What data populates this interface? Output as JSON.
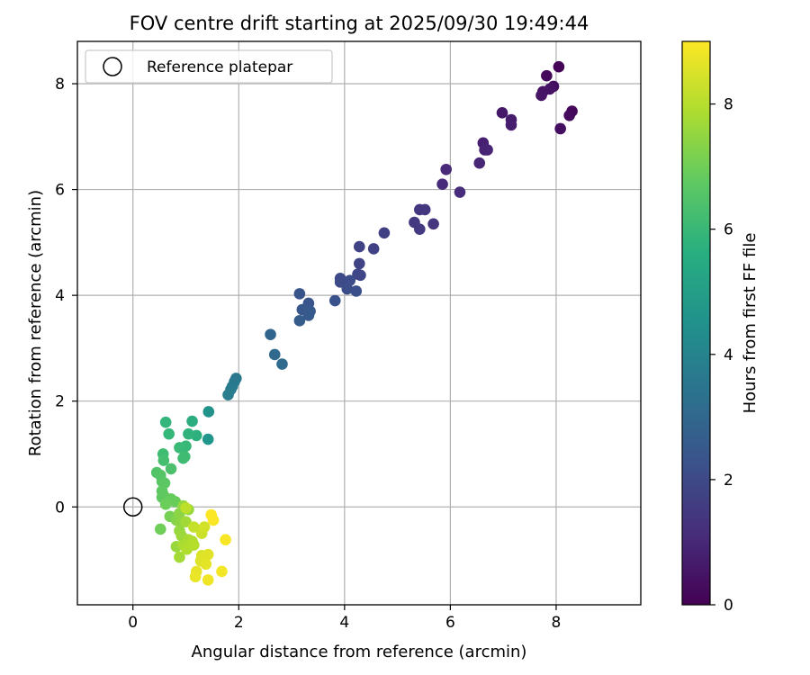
{
  "chart_data": {
    "type": "scatter",
    "title": "FOV centre drift starting at 2025/09/30 19:49:44",
    "xlabel": "Angular distance from reference (arcmin)",
    "ylabel": "Rotation from reference (arcmin)",
    "xlim": [
      -1.05,
      9.6
    ],
    "ylim": [
      -1.85,
      8.8
    ],
    "xticks": [
      0,
      2,
      4,
      6,
      8
    ],
    "yticks": [
      0,
      2,
      4,
      6,
      8
    ],
    "xtick_labels": [
      "0",
      "2",
      "4",
      "6",
      "8"
    ],
    "ytick_labels": [
      "0",
      "2",
      "4",
      "6",
      "8"
    ],
    "grid": true,
    "legend": {
      "location": "upper left",
      "entries": [
        "Reference platepar"
      ]
    },
    "reference_point": {
      "x": 0,
      "y": 0,
      "label": "Reference platepar"
    },
    "colorbar": {
      "label": "Hours from first FF file",
      "colormap": "viridis",
      "range": [
        0,
        9
      ],
      "ticks": [
        0,
        2,
        4,
        6,
        8
      ],
      "tick_labels": [
        "0",
        "2",
        "4",
        "6",
        "8"
      ]
    },
    "series": [
      {
        "name": "FOV centre",
        "points": [
          {
            "x": 8.05,
            "y": 8.32,
            "h": 0.1
          },
          {
            "x": 7.82,
            "y": 8.15,
            "h": 0.2
          },
          {
            "x": 7.95,
            "y": 7.95,
            "h": 0.3
          },
          {
            "x": 7.75,
            "y": 7.85,
            "h": 0.4
          },
          {
            "x": 7.72,
            "y": 7.78,
            "h": 0.5
          },
          {
            "x": 8.3,
            "y": 7.48,
            "h": 0.15
          },
          {
            "x": 8.25,
            "y": 7.4,
            "h": 0.25
          },
          {
            "x": 8.08,
            "y": 7.15,
            "h": 0.35
          },
          {
            "x": 7.88,
            "y": 7.9,
            "h": 0.45
          },
          {
            "x": 6.98,
            "y": 7.45,
            "h": 0.6
          },
          {
            "x": 7.15,
            "y": 7.32,
            "h": 0.7
          },
          {
            "x": 7.15,
            "y": 7.22,
            "h": 0.75
          },
          {
            "x": 6.62,
            "y": 6.88,
            "h": 0.8
          },
          {
            "x": 6.65,
            "y": 6.75,
            "h": 0.85
          },
          {
            "x": 6.7,
            "y": 6.75,
            "h": 0.9
          },
          {
            "x": 6.55,
            "y": 6.5,
            "h": 0.95
          },
          {
            "x": 5.92,
            "y": 6.38,
            "h": 1.05
          },
          {
            "x": 5.85,
            "y": 6.1,
            "h": 1.1
          },
          {
            "x": 6.18,
            "y": 5.95,
            "h": 1.15
          },
          {
            "x": 5.42,
            "y": 5.62,
            "h": 1.4
          },
          {
            "x": 5.52,
            "y": 5.62,
            "h": 1.45
          },
          {
            "x": 5.32,
            "y": 5.38,
            "h": 1.5
          },
          {
            "x": 5.42,
            "y": 5.25,
            "h": 1.55
          },
          {
            "x": 5.68,
            "y": 5.35,
            "h": 1.35
          },
          {
            "x": 4.75,
            "y": 5.18,
            "h": 1.7
          },
          {
            "x": 4.28,
            "y": 4.92,
            "h": 1.8
          },
          {
            "x": 4.55,
            "y": 4.88,
            "h": 1.75
          },
          {
            "x": 4.28,
            "y": 4.6,
            "h": 1.85
          },
          {
            "x": 4.3,
            "y": 4.38,
            "h": 1.9
          },
          {
            "x": 4.25,
            "y": 4.4,
            "h": 1.95
          },
          {
            "x": 3.92,
            "y": 4.32,
            "h": 2.0
          },
          {
            "x": 3.92,
            "y": 4.25,
            "h": 2.05
          },
          {
            "x": 4.1,
            "y": 4.28,
            "h": 2.1
          },
          {
            "x": 4.05,
            "y": 4.12,
            "h": 2.15
          },
          {
            "x": 4.22,
            "y": 4.08,
            "h": 2.2
          },
          {
            "x": 3.15,
            "y": 4.03,
            "h": 2.35
          },
          {
            "x": 3.32,
            "y": 3.85,
            "h": 2.4
          },
          {
            "x": 3.82,
            "y": 3.9,
            "h": 2.3
          },
          {
            "x": 3.2,
            "y": 3.73,
            "h": 2.45
          },
          {
            "x": 3.35,
            "y": 3.7,
            "h": 2.5
          },
          {
            "x": 3.32,
            "y": 3.62,
            "h": 2.55
          },
          {
            "x": 3.15,
            "y": 3.52,
            "h": 2.6
          },
          {
            "x": 2.6,
            "y": 3.26,
            "h": 2.9
          },
          {
            "x": 2.68,
            "y": 2.88,
            "h": 3.0
          },
          {
            "x": 2.82,
            "y": 2.7,
            "h": 3.1
          },
          {
            "x": 1.95,
            "y": 2.43,
            "h": 3.6
          },
          {
            "x": 1.92,
            "y": 2.37,
            "h": 3.65
          },
          {
            "x": 1.88,
            "y": 2.28,
            "h": 3.7
          },
          {
            "x": 1.85,
            "y": 2.22,
            "h": 3.75
          },
          {
            "x": 1.8,
            "y": 2.12,
            "h": 3.8
          },
          {
            "x": 1.43,
            "y": 1.8,
            "h": 4.6
          },
          {
            "x": 1.42,
            "y": 1.28,
            "h": 4.7
          },
          {
            "x": 1.12,
            "y": 1.62,
            "h": 5.6
          },
          {
            "x": 0.62,
            "y": 1.6,
            "h": 5.9
          },
          {
            "x": 0.68,
            "y": 1.38,
            "h": 6.0
          },
          {
            "x": 1.05,
            "y": 1.38,
            "h": 5.8
          },
          {
            "x": 1.2,
            "y": 1.35,
            "h": 5.7
          },
          {
            "x": 0.88,
            "y": 1.12,
            "h": 6.1
          },
          {
            "x": 1.0,
            "y": 1.15,
            "h": 6.05
          },
          {
            "x": 0.57,
            "y": 1.0,
            "h": 6.2
          },
          {
            "x": 0.58,
            "y": 0.88,
            "h": 6.3
          },
          {
            "x": 0.95,
            "y": 0.92,
            "h": 6.15
          },
          {
            "x": 0.98,
            "y": 0.95,
            "h": 6.2
          },
          {
            "x": 0.72,
            "y": 0.72,
            "h": 6.4
          },
          {
            "x": 0.45,
            "y": 0.65,
            "h": 6.5
          },
          {
            "x": 0.52,
            "y": 0.6,
            "h": 6.55
          },
          {
            "x": 0.55,
            "y": 0.48,
            "h": 6.6
          },
          {
            "x": 0.6,
            "y": 0.45,
            "h": 6.65
          },
          {
            "x": 0.55,
            "y": 0.3,
            "h": 6.7
          },
          {
            "x": 0.58,
            "y": 0.22,
            "h": 6.75
          },
          {
            "x": 0.65,
            "y": 0.12,
            "h": 6.8
          },
          {
            "x": 0.72,
            "y": 0.15,
            "h": 6.85
          },
          {
            "x": 0.8,
            "y": 0.1,
            "h": 6.9
          },
          {
            "x": 0.62,
            "y": 0.05,
            "h": 6.95
          },
          {
            "x": 0.55,
            "y": 0.18,
            "h": 6.72
          },
          {
            "x": 0.95,
            "y": 0.02,
            "h": 7.5
          },
          {
            "x": 1.05,
            "y": -0.05,
            "h": 7.6
          },
          {
            "x": 0.88,
            "y": -0.12,
            "h": 7.4
          },
          {
            "x": 0.7,
            "y": -0.18,
            "h": 7.1
          },
          {
            "x": 0.82,
            "y": -0.25,
            "h": 7.3
          },
          {
            "x": 0.9,
            "y": -0.3,
            "h": 7.45
          },
          {
            "x": 1.0,
            "y": -0.28,
            "h": 7.7
          },
          {
            "x": 0.52,
            "y": -0.42,
            "h": 7.0
          },
          {
            "x": 0.88,
            "y": -0.45,
            "h": 7.55
          },
          {
            "x": 0.92,
            "y": -0.55,
            "h": 7.65
          },
          {
            "x": 1.15,
            "y": -0.38,
            "h": 8.2
          },
          {
            "x": 1.3,
            "y": -0.5,
            "h": 8.3
          },
          {
            "x": 1.35,
            "y": -0.38,
            "h": 8.4
          },
          {
            "x": 1.05,
            "y": -0.62,
            "h": 7.8
          },
          {
            "x": 1.12,
            "y": -0.65,
            "h": 7.9
          },
          {
            "x": 1.15,
            "y": -0.72,
            "h": 8.0
          },
          {
            "x": 0.95,
            "y": -0.72,
            "h": 7.85
          },
          {
            "x": 0.82,
            "y": -0.75,
            "h": 7.6
          },
          {
            "x": 1.02,
            "y": -0.8,
            "h": 7.95
          },
          {
            "x": 0.88,
            "y": -0.95,
            "h": 7.75
          },
          {
            "x": 1.3,
            "y": -0.92,
            "h": 8.5
          },
          {
            "x": 1.42,
            "y": -0.9,
            "h": 8.6
          },
          {
            "x": 1.28,
            "y": -1.02,
            "h": 8.55
          },
          {
            "x": 1.38,
            "y": -1.08,
            "h": 8.65
          },
          {
            "x": 1.2,
            "y": -1.22,
            "h": 8.7
          },
          {
            "x": 1.18,
            "y": -1.32,
            "h": 8.75
          },
          {
            "x": 1.42,
            "y": -1.38,
            "h": 8.8
          },
          {
            "x": 1.68,
            "y": -1.22,
            "h": 8.85
          },
          {
            "x": 1.75,
            "y": -0.62,
            "h": 8.9
          },
          {
            "x": 1.52,
            "y": -0.25,
            "h": 8.95
          },
          {
            "x": 1.48,
            "y": -0.15,
            "h": 8.98
          },
          {
            "x": 1.0,
            "y": -0.02,
            "h": 8.1
          }
        ]
      }
    ]
  }
}
